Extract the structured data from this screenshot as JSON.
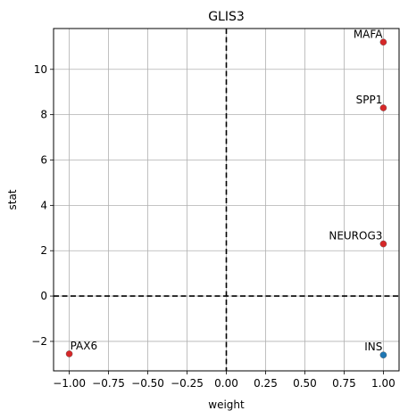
{
  "chart_data": {
    "type": "scatter",
    "title": "GLIS3",
    "xlabel": "weight",
    "ylabel": "stat",
    "xlim": [
      -1.1,
      1.1
    ],
    "ylim": [
      -3.3,
      11.8
    ],
    "xticks": [
      -1.0,
      -0.75,
      -0.5,
      -0.25,
      0.0,
      0.25,
      0.5,
      0.75,
      1.0
    ],
    "xtick_labels": [
      "−1.00",
      "−0.75",
      "−0.50",
      "−0.25",
      "0.00",
      "0.25",
      "0.50",
      "0.75",
      "1.00"
    ],
    "yticks": [
      -2,
      0,
      2,
      4,
      6,
      8,
      10
    ],
    "ytick_labels": [
      "−2",
      "0",
      "2",
      "4",
      "6",
      "8",
      "10"
    ],
    "grid": true,
    "reference_lines": {
      "x": 0,
      "y": 0,
      "style": "dashed",
      "color": "#000000"
    },
    "points": [
      {
        "label": "MAFA",
        "x": 1.0,
        "y": 11.2,
        "color": "#d62728",
        "label_anchor": "end"
      },
      {
        "label": "SPP1",
        "x": 1.0,
        "y": 8.3,
        "color": "#d62728",
        "label_anchor": "end"
      },
      {
        "label": "NEUROG3",
        "x": 1.0,
        "y": 2.3,
        "color": "#d62728",
        "label_anchor": "end"
      },
      {
        "label": "INS",
        "x": 1.0,
        "y": -2.6,
        "color": "#1f77b4",
        "label_anchor": "end"
      },
      {
        "label": "PAX6",
        "x": -1.0,
        "y": -2.55,
        "color": "#d62728",
        "label_anchor": "start"
      }
    ]
  }
}
